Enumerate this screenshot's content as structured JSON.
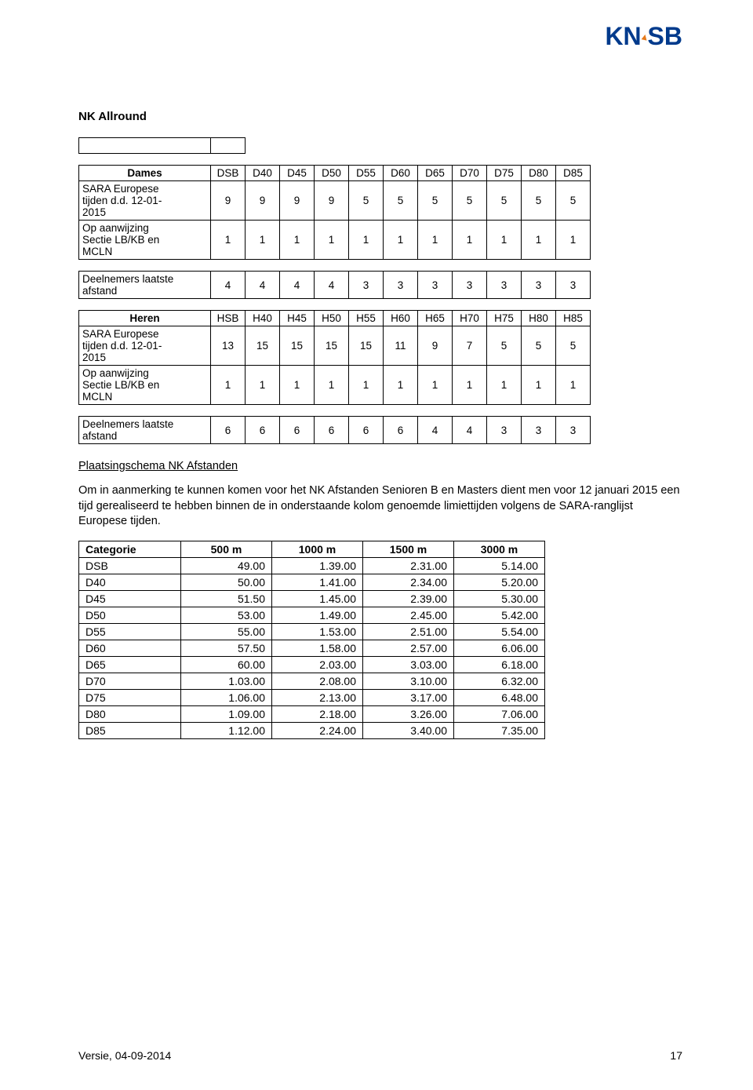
{
  "logo_text": "KNSB",
  "title": "NK Allround",
  "dames": {
    "header_label": "Dames",
    "cols": [
      "DSB",
      "D40",
      "D45",
      "D50",
      "D55",
      "D60",
      "D65",
      "D70",
      "D75",
      "D80",
      "D85"
    ],
    "rows": [
      {
        "label_lines": [
          "SARA Europese",
          "tijden d.d. 12-01-",
          "2015"
        ],
        "vals": [
          "9",
          "9",
          "9",
          "9",
          "5",
          "5",
          "5",
          "5",
          "5",
          "5",
          "5"
        ]
      },
      {
        "label_lines": [
          "Op aanwijzing",
          "Sectie LB/KB en",
          "MCLN"
        ],
        "vals": [
          "1",
          "1",
          "1",
          "1",
          "1",
          "1",
          "1",
          "1",
          "1",
          "1",
          "1"
        ]
      }
    ],
    "last": {
      "label_lines": [
        "Deelnemers laatste",
        "afstand"
      ],
      "vals": [
        "4",
        "4",
        "4",
        "4",
        "3",
        "3",
        "3",
        "3",
        "3",
        "3",
        "3"
      ]
    }
  },
  "heren": {
    "header_label": "Heren",
    "cols": [
      "HSB",
      "H40",
      "H45",
      "H50",
      "H55",
      "H60",
      "H65",
      "H70",
      "H75",
      "H80",
      "H85"
    ],
    "rows": [
      {
        "label_lines": [
          "SARA Europese",
          "tijden d.d. 12-01-",
          "2015"
        ],
        "vals": [
          "13",
          "15",
          "15",
          "15",
          "15",
          "11",
          "9",
          "7",
          "5",
          "5",
          "5"
        ]
      },
      {
        "label_lines": [
          "Op aanwijzing",
          "Sectie LB/KB en",
          "MCLN"
        ],
        "vals": [
          "1",
          "1",
          "1",
          "1",
          "1",
          "1",
          "1",
          "1",
          "1",
          "1",
          "1"
        ]
      }
    ],
    "last": {
      "label_lines": [
        "Deelnemers laatste",
        "afstand"
      ],
      "vals": [
        "6",
        "6",
        "6",
        "6",
        "6",
        "6",
        "4",
        "4",
        "3",
        "3",
        "3"
      ]
    }
  },
  "subheading": "Plaatsingschema NK Afstanden",
  "paragraph": "Om in aanmerking te kunnen komen voor het NK Afstanden Senioren B en Masters  dient men voor 12 januari 2015 een tijd gerealiseerd te hebben binnen de in onderstaande kolom genoemde limiettijden volgens de SARA-ranglijst Europese tijden.",
  "times_table": {
    "header": [
      "Categorie",
      "500 m",
      "1000 m",
      "1500 m",
      "3000 m"
    ],
    "rows": [
      [
        "DSB",
        "49.00",
        "1.39.00",
        "2.31.00",
        "5.14.00"
      ],
      [
        "D40",
        "50.00",
        "1.41.00",
        "2.34.00",
        "5.20.00"
      ],
      [
        "D45",
        "51.50",
        "1.45.00",
        "2.39.00",
        "5.30.00"
      ],
      [
        "D50",
        "53.00",
        "1.49.00",
        "2.45.00",
        "5.42.00"
      ],
      [
        "D55",
        "55.00",
        "1.53.00",
        "2.51.00",
        "5.54.00"
      ],
      [
        "D60",
        "57.50",
        "1.58.00",
        "2.57.00",
        "6.06.00"
      ],
      [
        "D65",
        "60.00",
        "2.03.00",
        "3.03.00",
        "6.18.00"
      ],
      [
        "D70",
        "1.03.00",
        "2.08.00",
        "3.10.00",
        "6.32.00"
      ],
      [
        "D75",
        "1.06.00",
        "2.13.00",
        "3.17.00",
        "6.48.00"
      ],
      [
        "D80",
        "1.09.00",
        "2.18.00",
        "3.26.00",
        "7.06.00"
      ],
      [
        "D85",
        "1.12.00",
        "2.24.00",
        "3.40.00",
        "7.35.00"
      ]
    ]
  },
  "footer_version": "Versie, 04-09-2014",
  "footer_page": "17"
}
